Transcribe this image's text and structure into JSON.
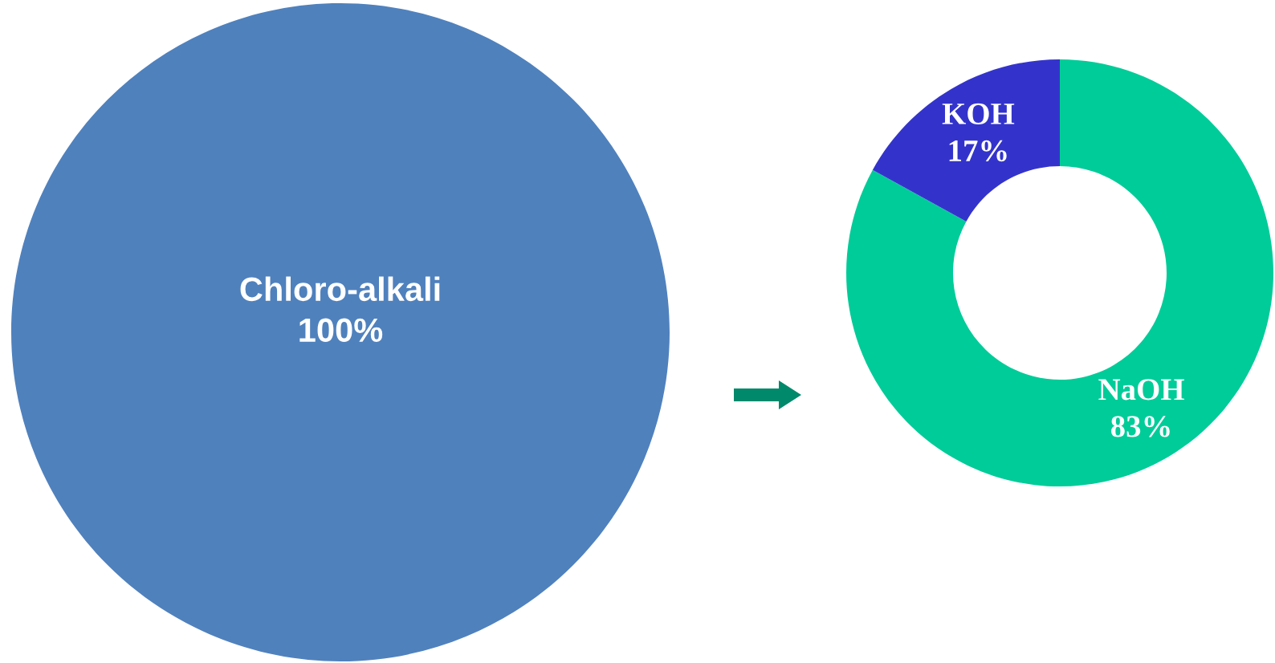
{
  "chart_data": [
    {
      "type": "pie",
      "categories": [
        "Chloro-alkali"
      ],
      "values": [
        100
      ],
      "value_labels": [
        "100%"
      ],
      "colors": [
        "#4f81bd"
      ]
    },
    {
      "type": "donut",
      "categories": [
        "NaOH",
        "KOH"
      ],
      "values": [
        83,
        17
      ],
      "value_labels": [
        "83%",
        "17%"
      ],
      "colors": [
        "#00cc99",
        "#3333cc"
      ]
    }
  ]
}
